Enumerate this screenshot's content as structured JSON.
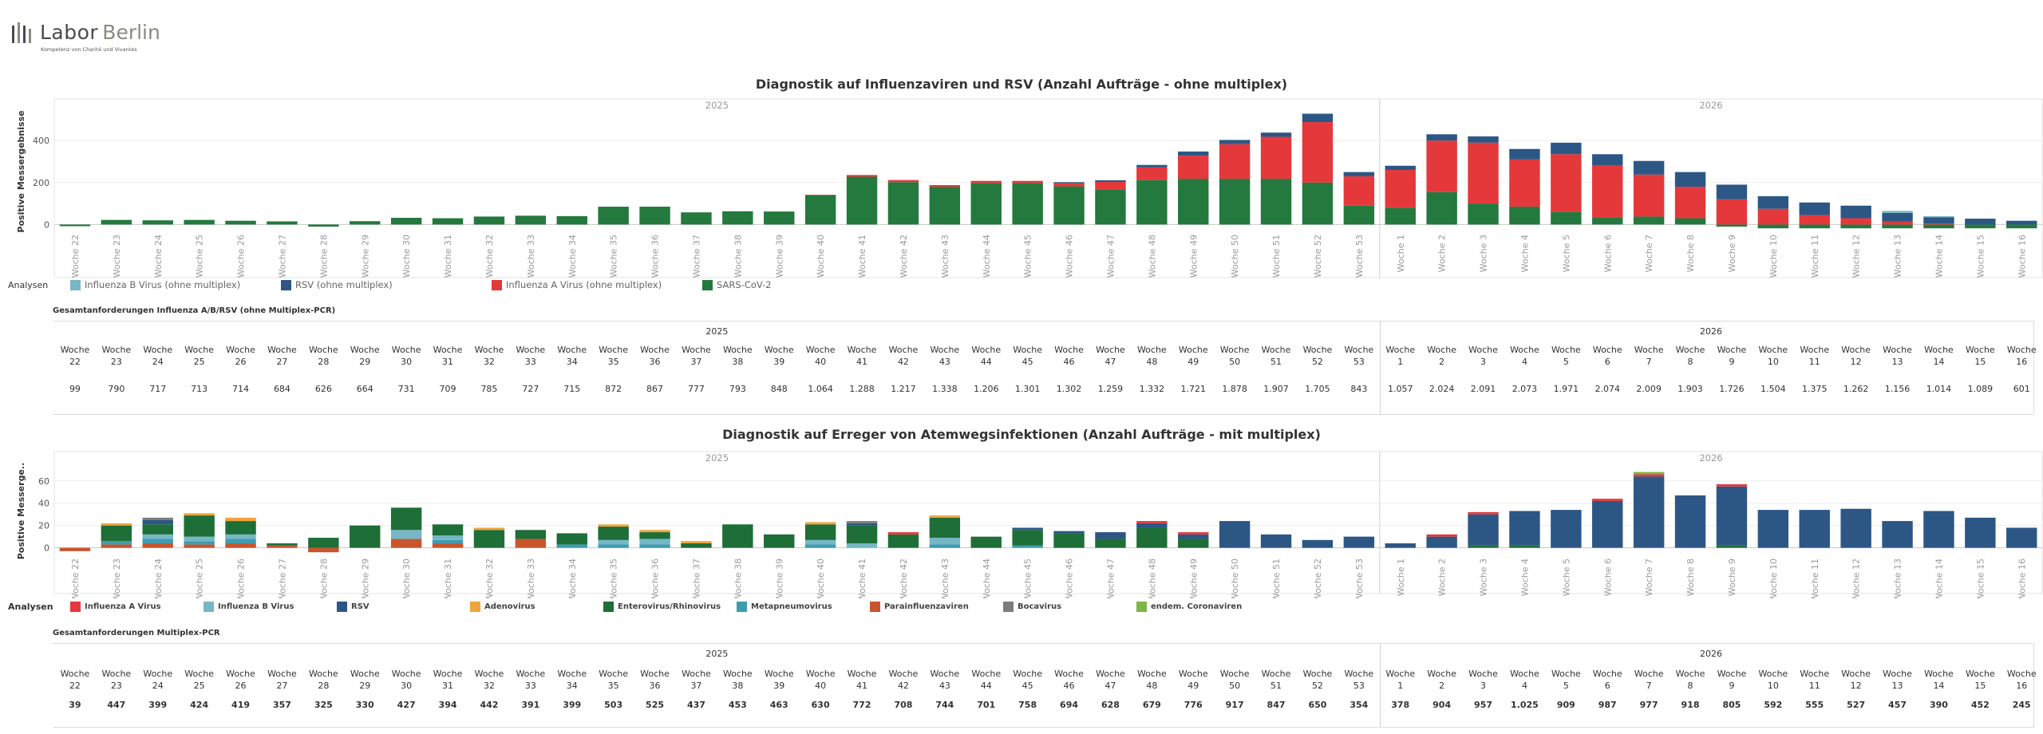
{
  "logo": {
    "word1": "Labor",
    "word2": "Berlin",
    "tagline": "Kompetenz von Charité und Vivantes"
  },
  "colors": {
    "influenza_a": "#E5383B",
    "influenza_b": "#76B7C5",
    "rsv": "#2C5785",
    "sars": "#23793E",
    "adenovirus": "#F0A43B",
    "entero": "#1E6E37",
    "metapneumo": "#3E9CB1",
    "parainfluenza": "#C8552E",
    "bocavirus": "#7C7C7C",
    "corona": "#7FB547"
  },
  "chart_data": [
    {
      "type": "bar",
      "stacked": true,
      "title": "Diagnostik auf Influenzaviren und RSV (Anzahl Aufträge - ohne multiplex)",
      "ylabel": "Positive Messergebnisse",
      "ylim": [
        -25,
        530
      ],
      "yticks": [
        0,
        200,
        400
      ],
      "groups": [
        {
          "label": "2025",
          "categories": [
            "Woche 22",
            "Woche 23",
            "Woche 24",
            "Woche 25",
            "Woche 26",
            "Woche 27",
            "Woche 28",
            "Woche 29",
            "Woche 30",
            "Woche 31",
            "Woche 32",
            "Woche 33",
            "Woche 34",
            "Woche 35",
            "Woche 36",
            "Woche 37",
            "Woche 38",
            "Woche 39",
            "Woche 40",
            "Woche 41",
            "Woche 42",
            "Woche 43",
            "Woche 44",
            "Woche 45",
            "Woche 46",
            "Woche 47",
            "Woche 48",
            "Woche 49",
            "Woche 50",
            "Woche 51",
            "Woche 52",
            "Woche 53"
          ]
        },
        {
          "label": "2026",
          "categories": [
            "Woche 1",
            "Woche 2",
            "Woche 3",
            "Woche 4",
            "Woche 5",
            "Woche 6",
            "Woche 7",
            "Woche 8",
            "Woche 9",
            "Woche 10",
            "Woche 11",
            "Woche 12",
            "Woche 13",
            "Woche 14",
            "Woche 15",
            "Woche 16"
          ]
        }
      ],
      "series": [
        {
          "name": "SARS-CoV-2",
          "color_key": "sars",
          "values": [
            -8,
            22,
            20,
            22,
            18,
            15,
            -10,
            16,
            32,
            30,
            38,
            42,
            40,
            85,
            85,
            58,
            63,
            62,
            140,
            228,
            202,
            180,
            198,
            198,
            182,
            168,
            212,
            218,
            218,
            218,
            200,
            90,
            80,
            155,
            100,
            85,
            60,
            35,
            38,
            30,
            -10,
            -18,
            -18,
            -18,
            -18,
            -18,
            -18,
            -18
          ]
        },
        {
          "name": "Influenza A Virus (ohne multiplex)",
          "color_key": "influenza_a",
          "values": [
            0,
            0,
            0,
            0,
            0,
            0,
            0,
            0,
            0,
            0,
            0,
            0,
            0,
            0,
            0,
            0,
            0,
            0,
            2,
            8,
            10,
            8,
            10,
            10,
            15,
            35,
            60,
            110,
            165,
            200,
            288,
            140,
            180,
            245,
            290,
            225,
            275,
            245,
            200,
            150,
            120,
            75,
            45,
            30,
            15,
            5,
            0,
            0
          ]
        },
        {
          "name": "RSV (ohne multiplex)",
          "color_key": "rsv",
          "values": [
            0,
            0,
            0,
            0,
            0,
            0,
            0,
            0,
            0,
            0,
            0,
            0,
            0,
            0,
            0,
            0,
            0,
            0,
            0,
            0,
            0,
            0,
            0,
            0,
            5,
            8,
            12,
            20,
            20,
            20,
            40,
            20,
            20,
            30,
            30,
            50,
            55,
            55,
            65,
            70,
            70,
            60,
            60,
            60,
            40,
            30,
            28,
            18
          ]
        },
        {
          "name": "Influenza B Virus (ohne multiplex)",
          "color_key": "influenza_b",
          "values": [
            0,
            0,
            0,
            0,
            0,
            0,
            0,
            0,
            0,
            0,
            0,
            0,
            0,
            0,
            0,
            0,
            0,
            0,
            0,
            0,
            0,
            0,
            0,
            0,
            0,
            0,
            0,
            0,
            0,
            0,
            0,
            0,
            0,
            0,
            0,
            0,
            0,
            0,
            0,
            0,
            0,
            0,
            0,
            0,
            10,
            5,
            0,
            0
          ]
        }
      ]
    },
    {
      "type": "bar",
      "stacked": true,
      "title": "Diagnostik auf Erreger von Atemwegsinfektionen (Anzahl Aufträge - mit multiplex)",
      "ylabel": "Positive Messerge..",
      "ylim": [
        -6,
        72
      ],
      "yticks": [
        0,
        20,
        40,
        60
      ],
      "groups": [
        {
          "label": "2025",
          "categories": [
            "Woche 22",
            "Woche 23",
            "Woche 24",
            "Woche 25",
            "Woche 26",
            "Woche 27",
            "Woche 28",
            "Woche 29",
            "Woche 30",
            "Woche 31",
            "Woche 32",
            "Woche 33",
            "Woche 34",
            "Woche 35",
            "Woche 36",
            "Woche 37",
            "Woche 38",
            "Woche 39",
            "Woche 40",
            "Woche 41",
            "Woche 42",
            "Woche 43",
            "Woche 44",
            "Woche 45",
            "Woche 46",
            "Woche 47",
            "Woche 48",
            "Woche 49",
            "Woche 50",
            "Woche 51",
            "Woche 52",
            "Woche 53"
          ]
        },
        {
          "label": "2026",
          "categories": [
            "Woche 1",
            "Woche 2",
            "Woche 3",
            "Woche 4",
            "Woche 5",
            "Woche 6",
            "Woche 7",
            "Woche 8",
            "Woche 9",
            "Woche 10",
            "Woche 11",
            "Woche 12",
            "Woche 13",
            "Woche 14",
            "Woche 15",
            "Woche 16"
          ]
        }
      ],
      "series": [
        {
          "name": "Parainfluenzaviren",
          "color_key": "parainfluenza",
          "values": [
            -3,
            3,
            4,
            3,
            4,
            2,
            -4,
            0,
            8,
            4,
            0,
            8,
            0,
            0,
            0,
            0,
            0,
            0,
            0,
            0,
            0,
            0,
            0,
            0,
            0,
            0,
            0,
            0,
            0,
            0,
            0,
            0,
            0,
            0,
            0,
            0,
            0,
            0,
            0,
            0,
            0,
            0,
            0,
            0,
            0,
            0,
            0,
            0
          ]
        },
        {
          "name": "Metapneumovirus",
          "color_key": "metapneumo",
          "values": [
            0,
            3,
            4,
            3,
            4,
            0,
            0,
            0,
            0,
            3,
            0,
            0,
            3,
            3,
            3,
            0,
            0,
            0,
            3,
            0,
            0,
            3,
            0,
            2,
            0,
            0,
            0,
            0,
            0,
            0,
            0,
            0,
            0,
            0,
            0,
            0,
            0,
            0,
            0,
            0,
            0,
            0,
            0,
            0,
            0,
            0,
            0,
            0
          ]
        },
        {
          "name": "Influenza B Virus",
          "color_key": "influenza_b",
          "values": [
            0,
            0,
            4,
            4,
            4,
            0,
            0,
            0,
            8,
            4,
            0,
            0,
            0,
            4,
            5,
            0,
            0,
            0,
            4,
            4,
            0,
            6,
            0,
            0,
            0,
            0,
            0,
            0,
            0,
            0,
            0,
            0,
            0,
            0,
            0,
            0,
            0,
            0,
            0,
            0,
            0,
            0,
            0,
            0,
            0,
            0,
            0,
            0
          ]
        },
        {
          "name": "Enterovirus/Rhinovirus",
          "color_key": "entero",
          "values": [
            0,
            14,
            9,
            19,
            12,
            2,
            9,
            20,
            20,
            10,
            16,
            8,
            10,
            12,
            6,
            4,
            21,
            12,
            14,
            16,
            12,
            18,
            10,
            14,
            13,
            8,
            18,
            8,
            0,
            0,
            0,
            0,
            0,
            0,
            2,
            2,
            0,
            0,
            0,
            0,
            2,
            0,
            0,
            0,
            0,
            0,
            0,
            0
          ]
        },
        {
          "name": "RSV",
          "color_key": "rsv",
          "values": [
            0,
            0,
            4,
            0,
            0,
            0,
            0,
            0,
            0,
            0,
            0,
            0,
            0,
            0,
            0,
            0,
            0,
            0,
            0,
            2,
            0,
            0,
            0,
            2,
            2,
            6,
            4,
            4,
            24,
            12,
            7,
            10,
            4,
            10,
            28,
            31,
            34,
            42,
            64,
            47,
            53,
            34,
            34,
            35,
            24,
            33,
            27,
            18
          ]
        },
        {
          "name": "Adenovirus",
          "color_key": "adenovirus",
          "values": [
            0,
            2,
            0,
            2,
            3,
            0,
            0,
            0,
            0,
            0,
            2,
            0,
            0,
            2,
            2,
            2,
            0,
            0,
            2,
            0,
            0,
            2,
            0,
            0,
            0,
            0,
            0,
            0,
            0,
            0,
            0,
            0,
            0,
            0,
            0,
            0,
            0,
            0,
            0,
            0,
            0,
            0,
            0,
            0,
            0,
            0,
            0,
            0
          ]
        },
        {
          "name": "Influenza A Virus",
          "color_key": "influenza_a",
          "values": [
            0,
            0,
            0,
            0,
            0,
            0,
            0,
            0,
            0,
            0,
            0,
            0,
            0,
            0,
            0,
            0,
            0,
            0,
            0,
            0,
            2,
            0,
            0,
            0,
            0,
            0,
            2,
            2,
            0,
            0,
            0,
            0,
            0,
            2,
            2,
            0,
            0,
            2,
            2,
            0,
            2,
            0,
            0,
            0,
            0,
            0,
            0,
            0
          ]
        },
        {
          "name": "Bocavirus",
          "color_key": "bocavirus",
          "values": [
            0,
            0,
            2,
            0,
            0,
            0,
            0,
            0,
            0,
            0,
            0,
            0,
            0,
            0,
            0,
            0,
            0,
            0,
            0,
            2,
            0,
            0,
            0,
            0,
            0,
            0,
            0,
            0,
            0,
            0,
            0,
            0,
            0,
            0,
            0,
            0,
            0,
            0,
            0,
            0,
            0,
            0,
            0,
            0,
            0,
            0,
            0,
            0
          ]
        },
        {
          "name": "endem. Coronaviren",
          "color_key": "corona",
          "values": [
            0,
            0,
            0,
            0,
            0,
            0,
            0,
            0,
            0,
            0,
            0,
            0,
            0,
            0,
            0,
            0,
            0,
            0,
            0,
            0,
            0,
            0,
            0,
            0,
            0,
            0,
            0,
            0,
            0,
            0,
            0,
            0,
            0,
            0,
            0,
            0,
            0,
            0,
            2,
            0,
            0,
            0,
            0,
            0,
            0,
            0,
            0,
            0
          ]
        }
      ]
    }
  ],
  "legend1": {
    "title": "Analysen",
    "items": [
      {
        "label": "Influenza B Virus (ohne multiplex)",
        "color_key": "influenza_b"
      },
      {
        "label": "RSV (ohne multiplex)",
        "color_key": "rsv"
      },
      {
        "label": "Influenza A Virus (ohne multiplex)",
        "color_key": "influenza_a"
      },
      {
        "label": "SARS-CoV-2",
        "color_key": "sars"
      }
    ]
  },
  "legend2": {
    "title": "Analysen",
    "items": [
      {
        "label": "Influenza A Virus",
        "color_key": "influenza_a"
      },
      {
        "label": "Influenza B Virus",
        "color_key": "influenza_b"
      },
      {
        "label": "RSV",
        "color_key": "rsv"
      },
      {
        "label": "Adenovirus",
        "color_key": "adenovirus"
      },
      {
        "label": "Enterovirus/Rhinovirus",
        "color_key": "entero"
      },
      {
        "label": "Metapneumovirus",
        "color_key": "metapneumo"
      },
      {
        "label": "Parainfluenzaviren",
        "color_key": "parainfluenza"
      },
      {
        "label": "Bocavirus",
        "color_key": "bocavirus"
      },
      {
        "label": "endem. Coronaviren",
        "color_key": "corona"
      }
    ]
  },
  "table1": {
    "title": "Gesamtanforderungen Influenza A/B/RSV (ohne Multiplex-PCR)",
    "groups": [
      {
        "label": "2025",
        "weeks": [
          "22",
          "23",
          "24",
          "25",
          "26",
          "27",
          "28",
          "29",
          "30",
          "31",
          "32",
          "33",
          "34",
          "35",
          "36",
          "37",
          "38",
          "39",
          "40",
          "41",
          "42",
          "43",
          "44",
          "45",
          "46",
          "47",
          "48",
          "49",
          "50",
          "51",
          "52",
          "53"
        ]
      },
      {
        "label": "2026",
        "weeks": [
          "1",
          "2",
          "3",
          "4",
          "5",
          "6",
          "7",
          "8",
          "9",
          "10",
          "11",
          "12",
          "13",
          "14",
          "15",
          "16"
        ]
      }
    ],
    "week_word": "Woche",
    "values": [
      "99",
      "790",
      "717",
      "713",
      "714",
      "684",
      "626",
      "664",
      "731",
      "709",
      "785",
      "727",
      "715",
      "872",
      "867",
      "777",
      "793",
      "848",
      "1.064",
      "1.288",
      "1.217",
      "1.338",
      "1.206",
      "1.301",
      "1.302",
      "1.259",
      "1.332",
      "1.721",
      "1.878",
      "1.907",
      "1.705",
      "843",
      "1.057",
      "2.024",
      "2.091",
      "2.073",
      "1.971",
      "2.074",
      "2.009",
      "1.903",
      "1.726",
      "1.504",
      "1.375",
      "1.262",
      "1.156",
      "1.014",
      "1.089",
      "601"
    ]
  },
  "table2": {
    "title": "Gesamtanforderungen Multiplex-PCR",
    "groups": [
      {
        "label": "2025",
        "weeks": [
          "22",
          "23",
          "24",
          "25",
          "26",
          "27",
          "28",
          "29",
          "30",
          "31",
          "32",
          "33",
          "34",
          "35",
          "36",
          "37",
          "38",
          "39",
          "40",
          "41",
          "42",
          "43",
          "44",
          "45",
          "46",
          "47",
          "48",
          "49",
          "50",
          "51",
          "52",
          "53"
        ]
      },
      {
        "label": "2026",
        "weeks": [
          "1",
          "2",
          "3",
          "4",
          "5",
          "6",
          "7",
          "8",
          "9",
          "10",
          "11",
          "12",
          "13",
          "14",
          "15",
          "16"
        ]
      }
    ],
    "week_word": "Woche",
    "values": [
      "39",
      "447",
      "399",
      "424",
      "419",
      "357",
      "325",
      "330",
      "427",
      "394",
      "442",
      "391",
      "399",
      "503",
      "525",
      "437",
      "453",
      "463",
      "630",
      "772",
      "708",
      "744",
      "701",
      "758",
      "694",
      "628",
      "679",
      "776",
      "917",
      "847",
      "650",
      "354",
      "378",
      "904",
      "957",
      "1.025",
      "909",
      "987",
      "977",
      "918",
      "805",
      "592",
      "555",
      "527",
      "457",
      "390",
      "452",
      "245"
    ]
  }
}
